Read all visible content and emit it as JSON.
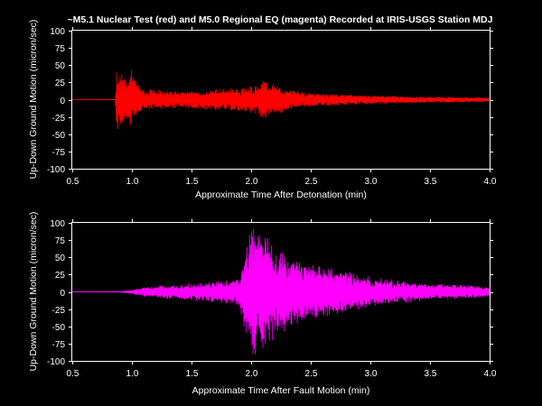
{
  "figure_title": "~M5.1 Nuclear Test (red) and M5.0 Regional EQ (magenta) Recorded at IRIS-USGS Station MDJ",
  "chart_data": [
    {
      "type": "line",
      "color": "#ff0000",
      "xlabel": "Approximate Time After Detonation (min)",
      "ylabel": "Up-Down Ground Motion (micron/sec)",
      "xlim": [
        0.5,
        4.0
      ],
      "ylim": [
        -100,
        100
      ],
      "x_ticks": [
        "0.5",
        "1.0",
        "1.5",
        "2.0",
        "2.5",
        "3.0",
        "3.5",
        "4.0"
      ],
      "y_ticks": [
        "100",
        "75",
        "50",
        "25",
        "0",
        "-25",
        "-50",
        "-75",
        "-100"
      ],
      "envelope": {
        "x": [
          0.5,
          0.86,
          0.87,
          0.9,
          0.95,
          1.0,
          1.05,
          1.1,
          1.2,
          1.4,
          1.6,
          1.8,
          1.9,
          2.0,
          2.1,
          2.2,
          2.3,
          2.5,
          2.8,
          3.0,
          3.5,
          4.0
        ],
        "amplitude": [
          0.2,
          0.3,
          50,
          40,
          30,
          45,
          25,
          15,
          15,
          12,
          14,
          16,
          18,
          20,
          28,
          22,
          15,
          10,
          8,
          6,
          4,
          3
        ]
      },
      "grid": false
    },
    {
      "type": "line",
      "color": "#ff00ff",
      "xlabel": "Approximate Time After Fault Motion (min)",
      "ylabel": "Up-Down Ground Motion (micron/sec)",
      "xlim": [
        0.5,
        4.0
      ],
      "ylim": [
        -100,
        100
      ],
      "x_ticks": [
        "0.5",
        "1.0",
        "1.5",
        "2.0",
        "2.5",
        "3.0",
        "3.5",
        "4.0"
      ],
      "y_ticks": [
        "100",
        "75",
        "50",
        "25",
        "0",
        "-25",
        "-50",
        "-75",
        "-100"
      ],
      "envelope": {
        "x": [
          0.5,
          0.9,
          1.0,
          1.1,
          1.3,
          1.5,
          1.7,
          1.9,
          1.95,
          2.0,
          2.1,
          2.2,
          2.3,
          2.5,
          2.8,
          3.0,
          3.5,
          4.0
        ],
        "amplitude": [
          0.2,
          0.6,
          3,
          7,
          10,
          12,
          15,
          20,
          60,
          95,
          90,
          70,
          55,
          40,
          30,
          22,
          12,
          8
        ]
      },
      "grid": false
    }
  ]
}
